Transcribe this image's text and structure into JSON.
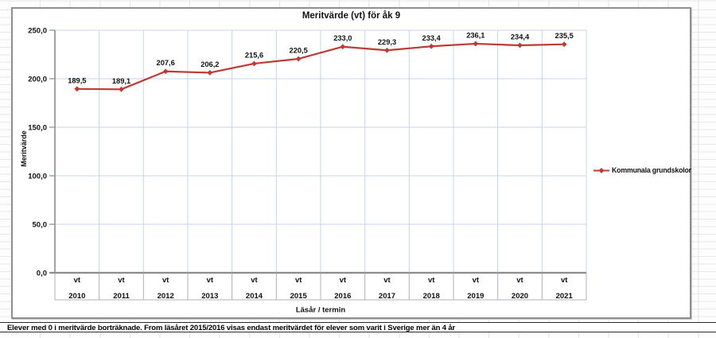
{
  "chart_data": {
    "type": "line",
    "title": "Meritvärde (vt) för åk 9",
    "xlabel": "Läsår / termin",
    "ylabel": "Meritvärde",
    "ylim": [
      0,
      250
    ],
    "grid": true,
    "legend_position": "right",
    "yticks": [
      {
        "value": 0,
        "label": "0,0"
      },
      {
        "value": 50,
        "label": "50,0"
      },
      {
        "value": 100,
        "label": "100,0"
      },
      {
        "value": 150,
        "label": "150,0"
      },
      {
        "value": 200,
        "label": "200,0"
      },
      {
        "value": 250,
        "label": "250,0"
      }
    ],
    "categories": [
      {
        "term": "vt",
        "year": "2010"
      },
      {
        "term": "vt",
        "year": "2011"
      },
      {
        "term": "vt",
        "year": "2012"
      },
      {
        "term": "vt",
        "year": "2013"
      },
      {
        "term": "vt",
        "year": "2014"
      },
      {
        "term": "vt",
        "year": "2015"
      },
      {
        "term": "vt",
        "year": "2016"
      },
      {
        "term": "vt",
        "year": "2017"
      },
      {
        "term": "vt",
        "year": "2018"
      },
      {
        "term": "vt",
        "year": "2019"
      },
      {
        "term": "vt",
        "year": "2020"
      },
      {
        "term": "vt",
        "year": "2021"
      }
    ],
    "series": [
      {
        "name": "Kommunala grundskolor",
        "color": "#be3a34",
        "values": [
          189.5,
          189.1,
          207.6,
          206.2,
          215.6,
          220.5,
          233.0,
          229.3,
          233.4,
          236.1,
          234.4,
          235.5
        ],
        "labels": [
          "189,5",
          "189,1",
          "207,6",
          "206,2",
          "215,6",
          "220,5",
          "233,0",
          "229,3",
          "233,4",
          "236,1",
          "234,4",
          "235,5"
        ]
      }
    ],
    "gridline_color": "#c3d6ec",
    "axis_color": "#8c8c8c",
    "separator_color": "#a9b3bd"
  },
  "footer_note": "Elever med 0 i meritvärde borträknade. From läsåret 2015/2016 visas endast meritvärdet för elever som varit i Sverige mer än 4 år"
}
